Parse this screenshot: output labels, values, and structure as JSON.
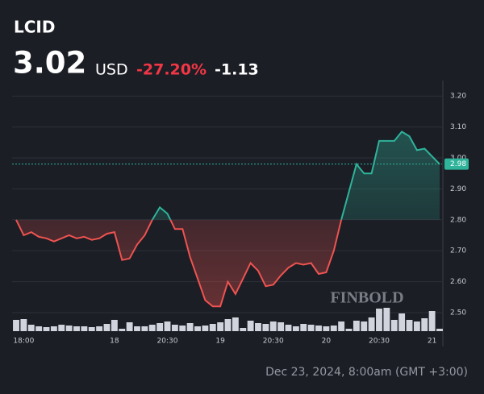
{
  "chart_data": {
    "type": "line",
    "symbol": "LCID",
    "price": "3.02",
    "currency": "USD",
    "change_percent": "-27.20%",
    "change": "-1.13",
    "timestamp": "Dec 23, 2024, 8:00am (GMT +3:00)",
    "watermark": "FINBOLD",
    "up_color": "#2fb39b",
    "down_color": "#ef5350",
    "baseline": 2.8,
    "last_value": 2.98,
    "ylim": [
      2.44,
      3.25
    ],
    "yticks": [
      {
        "value": 2.5,
        "label": "2.50"
      },
      {
        "value": 2.6,
        "label": "2.60"
      },
      {
        "value": 2.7,
        "label": "2.70"
      },
      {
        "value": 2.8,
        "label": "2.80"
      },
      {
        "value": 2.9,
        "label": "2.90"
      },
      {
        "value": 3.0,
        "label": "3.00"
      },
      {
        "value": 3.1,
        "label": "3.10"
      },
      {
        "value": 3.2,
        "label": "3.20"
      }
    ],
    "xlim": [
      0,
      56
    ],
    "xticks": [
      {
        "value": 1,
        "label": "18:00"
      },
      {
        "value": 13,
        "label": "18"
      },
      {
        "value": 20,
        "label": "20:30"
      },
      {
        "value": 27,
        "label": "19"
      },
      {
        "value": 34,
        "label": "20:30"
      },
      {
        "value": 41,
        "label": "20"
      },
      {
        "value": 48,
        "label": "20:30"
      },
      {
        "value": 55,
        "label": "21"
      }
    ],
    "values": [
      2.8,
      2.75,
      2.76,
      2.745,
      2.74,
      2.73,
      2.74,
      2.75,
      2.74,
      2.745,
      2.735,
      2.74,
      2.755,
      2.76,
      2.67,
      2.675,
      2.72,
      2.75,
      2.8,
      2.84,
      2.82,
      2.77,
      2.77,
      2.68,
      2.61,
      2.54,
      2.52,
      2.52,
      2.6,
      2.56,
      2.61,
      2.66,
      2.635,
      2.585,
      2.59,
      2.62,
      2.645,
      2.66,
      2.655,
      2.66,
      2.625,
      2.63,
      2.7,
      2.8,
      2.89,
      2.98,
      2.95,
      2.95,
      3.055,
      3.055,
      3.055,
      3.085,
      3.07,
      3.025,
      3.03,
      3.005,
      2.98
    ],
    "volume_color": "#d1d4dc",
    "volume_lim": [
      0,
      40
    ],
    "volume": [
      14,
      15,
      8,
      6,
      5,
      6,
      8,
      7,
      6,
      6,
      5,
      6,
      9,
      14,
      3,
      11,
      6,
      6,
      8,
      10,
      12,
      8,
      7,
      10,
      6,
      7,
      9,
      11,
      15,
      17,
      4,
      13,
      10,
      9,
      12,
      11,
      8,
      6,
      9,
      8,
      7,
      6,
      7,
      12,
      3,
      13,
      12,
      17,
      28,
      29,
      14,
      22,
      14,
      12,
      16,
      25,
      3
    ]
  }
}
